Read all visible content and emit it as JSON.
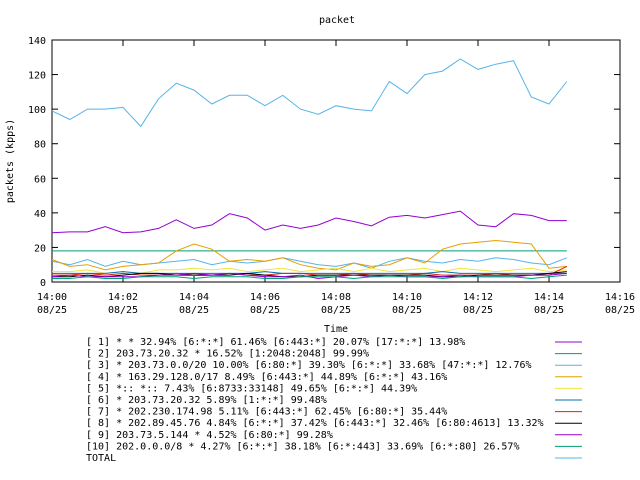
{
  "chart_data": {
    "type": "line",
    "title": "packet",
    "xlabel": "Time",
    "ylabel": "packets (kpps)",
    "xlim": [
      0,
      16
    ],
    "ylim": [
      0,
      140
    ],
    "grid": false,
    "legend_position": "bottom",
    "yticks": [
      0,
      20,
      40,
      60,
      80,
      100,
      120,
      140
    ],
    "xticks": [
      {
        "x": 0,
        "time": "14:00",
        "date": "08/25"
      },
      {
        "x": 2,
        "time": "14:02",
        "date": "08/25"
      },
      {
        "x": 4,
        "time": "14:04",
        "date": "08/25"
      },
      {
        "x": 6,
        "time": "14:06",
        "date": "08/25"
      },
      {
        "x": 8,
        "time": "14:08",
        "date": "08/25"
      },
      {
        "x": 10,
        "time": "14:10",
        "date": "08/25"
      },
      {
        "x": 12,
        "time": "14:12",
        "date": "08/25"
      },
      {
        "x": 14,
        "time": "14:14",
        "date": "08/25"
      },
      {
        "x": 16,
        "time": "14:16",
        "date": "08/25"
      }
    ],
    "x": [
      0,
      0.5,
      1,
      1.5,
      2,
      2.5,
      3,
      3.5,
      4,
      4.5,
      5,
      5.5,
      6,
      6.5,
      7,
      7.5,
      8,
      8.5,
      9,
      9.5,
      10,
      10.5,
      11,
      11.5,
      12,
      12.5,
      13,
      13.5,
      14,
      14.5
    ],
    "series": [
      {
        "name": "[ 1] * * 32.94%  [6:*:*] 61.46% [6:443:*] 20.07% [17:*:*] 13.98%",
        "color": "#9400d3",
        "values": [
          28.5,
          29,
          29,
          32,
          28.5,
          29,
          31,
          36,
          31,
          33,
          39.5,
          37,
          30,
          33,
          31,
          33,
          37,
          35,
          32.5,
          37.5,
          38.5,
          37,
          39,
          41,
          33,
          32,
          39.5,
          38.5,
          35.5,
          35.5
        ]
      },
      {
        "name": "[ 2] 203.73.20.32 * 16.52%  [1:2048:2048] 99.99%",
        "color": "#009e73",
        "values": [
          18,
          18,
          18,
          18,
          18,
          18,
          18,
          18,
          18,
          18,
          18,
          18,
          18,
          18,
          18,
          18,
          18,
          18,
          18,
          18,
          18,
          18,
          18,
          18,
          18,
          18,
          18,
          18,
          18,
          18
        ]
      },
      {
        "name": "[ 3] * 203.73.0.0/20 10.00%  [6:80:*] 39.30% [6:*:*] 33.68% [47:*:*] 12.76%",
        "color": "#56b4e9",
        "values": [
          12,
          10,
          13,
          9,
          12,
          10,
          11,
          12,
          13,
          10,
          12,
          11,
          12,
          14,
          12,
          10,
          9,
          11,
          8,
          12,
          14,
          12,
          11,
          13,
          12,
          14,
          13,
          11,
          10,
          14
        ]
      },
      {
        "name": "[ 4] * 163.29.128.0/17 8.49%  [6:443:*] 44.89% [6:*:*] 43.16%",
        "color": "#e69f00",
        "values": [
          13,
          9,
          10,
          7,
          9,
          10,
          11,
          18,
          22,
          19,
          12,
          13,
          12,
          14,
          10,
          8,
          7,
          11,
          9,
          10,
          14,
          11,
          19,
          22,
          23,
          24,
          23,
          22,
          8,
          9
        ]
      },
      {
        "name": "[ 5] *:: *:: 7.43%  [6:8733:33148] 49.65% [6:*:*] 44.39%",
        "color": "#f0e442",
        "values": [
          6,
          6,
          7,
          5,
          6,
          5,
          7,
          7,
          8,
          7,
          8,
          6,
          7,
          8,
          6,
          7,
          8,
          6,
          8,
          6,
          7,
          8,
          6,
          8,
          7,
          6,
          7,
          8,
          6,
          7
        ]
      },
      {
        "name": "[ 6] * 203.73.20.32 5.89%  [1:*:*] 99.48%",
        "color": "#0072b2",
        "values": [
          5,
          5,
          5,
          5,
          6,
          5,
          5,
          5,
          5,
          5,
          5,
          5,
          6,
          5,
          5,
          5,
          5,
          5,
          5,
          5,
          5,
          5,
          6,
          5,
          5,
          5,
          5,
          5,
          5,
          5
        ]
      },
      {
        "name": "[ 7] * 202.230.174.98 5.11%  [6:443:*] 62.45% [6:80:*] 35.44%",
        "color": "#e51e10",
        "values": [
          4,
          4,
          5,
          4,
          5,
          4,
          4,
          5,
          4,
          4,
          5,
          4,
          4,
          5,
          5,
          4,
          4,
          5,
          4,
          4,
          4,
          5,
          4,
          4,
          4,
          5,
          4,
          4,
          4,
          9
        ]
      },
      {
        "name": "[ 8] * 202.89.45.76 4.84%  [6:*:*] 37.42% [6:443:*] 32.46% [6:80:4613] 13.32%",
        "color": "#000000",
        "values": [
          3,
          3,
          4,
          3,
          4,
          5,
          5,
          4,
          4,
          4,
          4,
          5,
          4,
          3,
          3,
          4,
          4,
          4,
          4,
          4,
          4,
          4,
          3,
          3,
          4,
          4,
          4,
          4,
          5,
          6
        ]
      },
      {
        "name": "[ 9] 203.73.5.144 * 4.52%  [6:80:*] 99.28%",
        "color": "#9400d3",
        "values": [
          3,
          4,
          3,
          3,
          3,
          3,
          4,
          4,
          5,
          4,
          5,
          4,
          3,
          3,
          4,
          2,
          3,
          4,
          3,
          4,
          3,
          3,
          3,
          4,
          3,
          3,
          3,
          4,
          4,
          5
        ]
      },
      {
        "name": "[10] 202.0.0.0/8 * 4.27%  [6:*:*] 38.18% [6:*:443] 33.69% [6:*:80] 26.57%",
        "color": "#009e73",
        "values": [
          2,
          2,
          3,
          2,
          2,
          3,
          3,
          3,
          2,
          3,
          3,
          3,
          2,
          2,
          3,
          3,
          3,
          2,
          3,
          3,
          3,
          3,
          2,
          3,
          3,
          3,
          3,
          2,
          3,
          4
        ]
      },
      {
        "name": "TOTAL",
        "color": "#56b4e9",
        "values": [
          99,
          94,
          100,
          100,
          101,
          90,
          106,
          115,
          111,
          103,
          108,
          108,
          102,
          108,
          100,
          97,
          102,
          100,
          99,
          116,
          109,
          120,
          122,
          129,
          123,
          126,
          128,
          107,
          103,
          116
        ]
      }
    ]
  }
}
